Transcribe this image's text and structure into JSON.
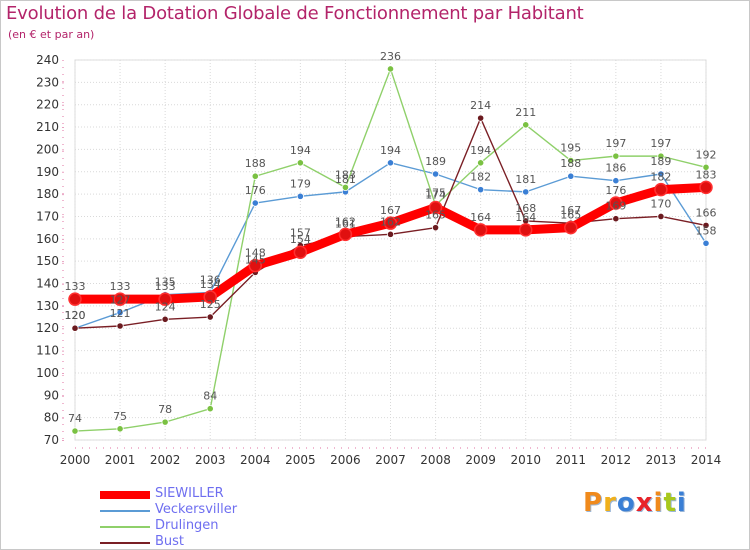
{
  "title": "Evolution de la Dotation Globale de Fonctionnement par Habitant",
  "subtitle": "(en € et par an)",
  "brand": {
    "text": "Proxiti",
    "letters": [
      "P",
      "r",
      "o",
      "x",
      "i",
      "t",
      "i"
    ],
    "colors": [
      "#f08a1c",
      "#f0b01c",
      "#3a7fd5",
      "#e8242a",
      "#f08a1c",
      "#a8c81c",
      "#3a7fd5"
    ]
  },
  "chart_data": {
    "type": "line",
    "title": "Evolution de la Dotation Globale de Fonctionnement par Habitant",
    "subtitle": "(en € et par an)",
    "xlabel": "",
    "ylabel": "",
    "ylim": [
      70,
      240
    ],
    "yticks": [
      70,
      80,
      90,
      100,
      110,
      120,
      130,
      140,
      150,
      160,
      170,
      180,
      190,
      200,
      210,
      220,
      230,
      240
    ],
    "categories": [
      "2000",
      "2001",
      "2002",
      "2003",
      "2004",
      "2005",
      "2006",
      "2007",
      "2008",
      "2009",
      "2010",
      "2011",
      "2012",
      "2013",
      "2014"
    ],
    "legend_position": "bottom-left",
    "series": [
      {
        "name": "SIEWILLER",
        "color": "#ff0000",
        "marker": "#e01010",
        "thick": true,
        "values": [
          133,
          133,
          133,
          134,
          148,
          154,
          162,
          167,
          174,
          164,
          164,
          165,
          176,
          182,
          183
        ]
      },
      {
        "name": "Veckersviller",
        "color": "#5b9bd5",
        "marker": "#3a7fd5",
        "thick": false,
        "values": [
          120,
          127,
          135,
          136,
          176,
          179,
          181,
          194,
          189,
          182,
          181,
          188,
          186,
          189,
          158
        ]
      },
      {
        "name": "Drulingen",
        "color": "#8fd06a",
        "marker": "#7ac142",
        "thick": false,
        "values": [
          74,
          75,
          78,
          84,
          188,
          194,
          183,
          236,
          175,
          194,
          211,
          195,
          197,
          197,
          192
        ]
      },
      {
        "name": "Bust",
        "color": "#7a1f25",
        "marker": "#6b1a1f",
        "thick": false,
        "values": [
          120,
          121,
          124,
          125,
          145,
          157,
          161,
          162,
          165,
          214,
          168,
          167,
          169,
          170,
          166
        ]
      }
    ]
  }
}
